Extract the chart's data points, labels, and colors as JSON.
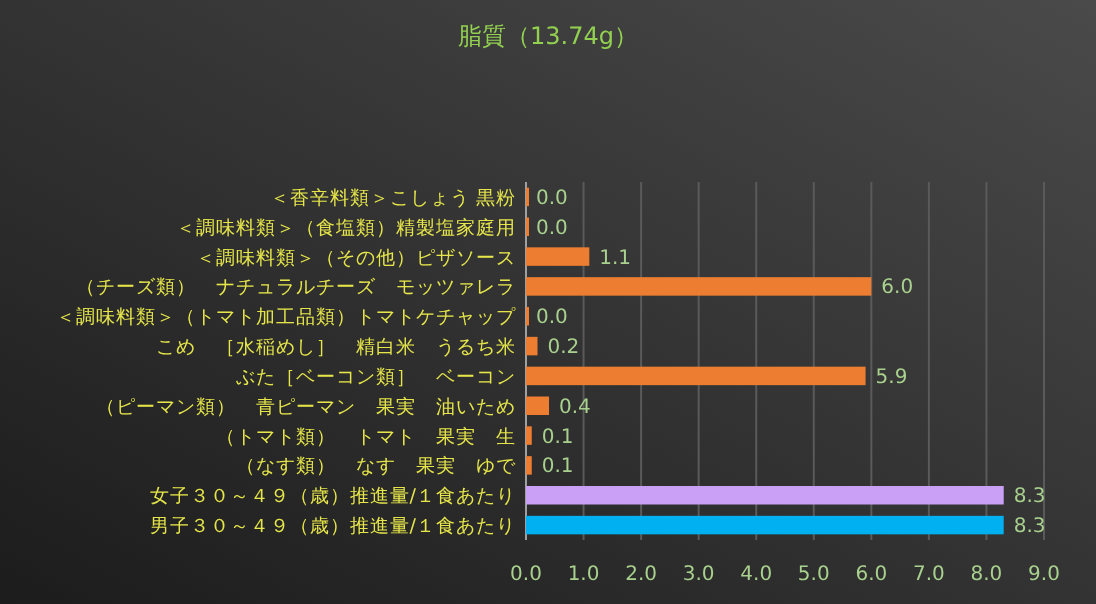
{
  "chart_data": {
    "type": "bar",
    "orientation": "horizontal",
    "title": "脂質（13.74g）",
    "categories": [
      "＜香辛料類＞こしょう 黒粉",
      "＜調味料類＞（食塩類）精製塩家庭用",
      "＜調味料類＞（その他）ピザソース",
      "（チーズ類）　ナチュラルチーズ　モッツァレラ",
      "＜調味料類＞（トマト加工品類）トマトケチャップ",
      "こめ　［水稲めし］　精白米　うるち米",
      "ぶた［ベーコン類］　ベーコン",
      "（ピーマン類）　青ピーマン　果実　油いため",
      "（トマト類）　トマト　果実　生",
      "（なす類）　なす　果実　ゆで",
      "女子３０～４９（歳）推進量/１食あたり",
      "男子３０～４９（歳）推進量/１食あたり"
    ],
    "values": [
      0.0,
      0.0,
      1.1,
      6.0,
      0.0,
      0.2,
      5.9,
      0.4,
      0.1,
      0.1,
      8.3,
      8.3
    ],
    "colors": [
      "#ed7d31",
      "#ed7d31",
      "#ed7d31",
      "#ed7d31",
      "#ed7d31",
      "#ed7d31",
      "#ed7d31",
      "#ed7d31",
      "#ed7d31",
      "#ed7d31",
      "#c9a0f5",
      "#00b0f0"
    ],
    "value_labels": [
      "0.0",
      "0.0",
      "1.1",
      "6.0",
      "0.0",
      "0.2",
      "5.9",
      "0.4",
      "0.1",
      "0.1",
      "8.3",
      "8.3"
    ],
    "grid": "x",
    "xlim": [
      0,
      9
    ],
    "xticks": [
      {
        "value": 0,
        "label": "0.0"
      },
      {
        "value": 1,
        "label": "1.0"
      },
      {
        "value": 2,
        "label": "2.0"
      },
      {
        "value": 3,
        "label": "3.0"
      },
      {
        "value": 4,
        "label": "4.0"
      },
      {
        "value": 5,
        "label": "5.0"
      },
      {
        "value": 6,
        "label": "6.0"
      },
      {
        "value": 7,
        "label": "7.0"
      },
      {
        "value": 8,
        "label": "8.0"
      },
      {
        "value": 9,
        "label": "9.0"
      }
    ]
  }
}
